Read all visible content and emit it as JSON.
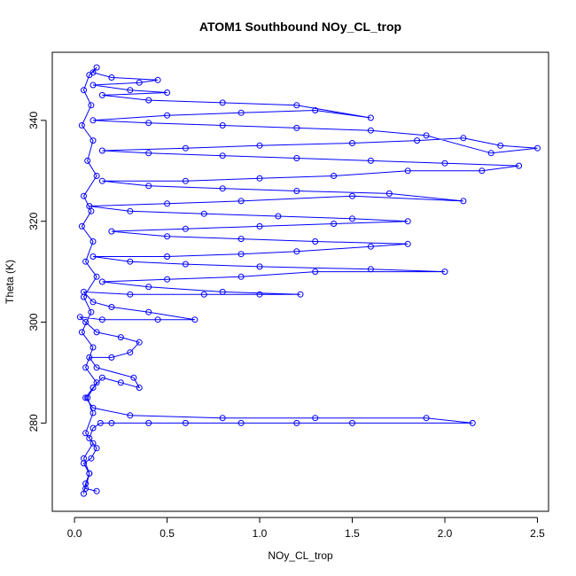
{
  "chart_data": {
    "type": "scatter",
    "title": "ATOM1 Southbound NOy_CL_trop",
    "xlabel": "NOy_CL_trop",
    "ylabel": "Theta (K)",
    "xlim": [
      -0.12,
      2.56
    ],
    "ylim": [
      262.5,
      353.5
    ],
    "x_ticks": [
      0.0,
      0.5,
      1.0,
      1.5,
      2.0,
      2.5
    ],
    "x_tick_labels": [
      "0.0",
      "0.5",
      "1.0",
      "1.5",
      "2.0",
      "2.5"
    ],
    "y_ticks": [
      280,
      300,
      320,
      340
    ],
    "y_tick_labels": [
      "280",
      "300",
      "320",
      "340"
    ],
    "grid": false,
    "legend": "none",
    "marker": "open-circle",
    "connected": true,
    "color": "#0000ff",
    "series": [
      {
        "points": [
          [
            0.05,
            266
          ],
          [
            0.06,
            268
          ],
          [
            0.08,
            270
          ],
          [
            0.05,
            272
          ],
          [
            0.09,
            273
          ],
          [
            0.12,
            275
          ],
          [
            0.08,
            277
          ],
          [
            0.1,
            279
          ],
          [
            0.14,
            280
          ],
          [
            0.2,
            280
          ],
          [
            0.4,
            280
          ],
          [
            0.6,
            280
          ],
          [
            0.9,
            280
          ],
          [
            1.2,
            280
          ],
          [
            1.5,
            280
          ],
          [
            2.15,
            280
          ],
          [
            1.9,
            281
          ],
          [
            1.3,
            281
          ],
          [
            0.8,
            281
          ],
          [
            0.3,
            281.5
          ],
          [
            0.1,
            283
          ],
          [
            0.06,
            285
          ],
          [
            0.1,
            287
          ],
          [
            0.15,
            289
          ],
          [
            0.25,
            288
          ],
          [
            0.35,
            287
          ],
          [
            0.32,
            289
          ],
          [
            0.12,
            291
          ],
          [
            0.08,
            293
          ],
          [
            0.2,
            293
          ],
          [
            0.3,
            294
          ],
          [
            0.35,
            296
          ],
          [
            0.25,
            297
          ],
          [
            0.12,
            298
          ],
          [
            0.06,
            300
          ],
          [
            0.03,
            301
          ],
          [
            0.15,
            300.5
          ],
          [
            0.45,
            300.5
          ],
          [
            0.65,
            300.5
          ],
          [
            0.4,
            302
          ],
          [
            0.2,
            303
          ],
          [
            0.1,
            304
          ],
          [
            0.05,
            306
          ],
          [
            0.3,
            305.5
          ],
          [
            0.7,
            305.5
          ],
          [
            1.0,
            305.5
          ],
          [
            1.22,
            305.5
          ],
          [
            0.8,
            306
          ],
          [
            0.4,
            307
          ],
          [
            0.15,
            308
          ],
          [
            0.5,
            308.5
          ],
          [
            0.9,
            309
          ],
          [
            1.3,
            310
          ],
          [
            2.0,
            310
          ],
          [
            1.6,
            310.5
          ],
          [
            1.0,
            311
          ],
          [
            0.6,
            311.5
          ],
          [
            0.3,
            312
          ],
          [
            0.1,
            313
          ],
          [
            0.5,
            313
          ],
          [
            0.9,
            313.5
          ],
          [
            1.2,
            314
          ],
          [
            1.6,
            315
          ],
          [
            1.8,
            315.5
          ],
          [
            1.3,
            316
          ],
          [
            0.9,
            316.5
          ],
          [
            0.5,
            317
          ],
          [
            0.2,
            318
          ],
          [
            0.6,
            318.5
          ],
          [
            1.0,
            319
          ],
          [
            1.4,
            319.5
          ],
          [
            1.8,
            320
          ],
          [
            1.5,
            320.5
          ],
          [
            1.1,
            321
          ],
          [
            0.7,
            321.5
          ],
          [
            0.3,
            322
          ],
          [
            0.08,
            323
          ],
          [
            0.5,
            323.5
          ],
          [
            0.9,
            324
          ],
          [
            1.5,
            325
          ],
          [
            2.1,
            324
          ],
          [
            1.7,
            325.5
          ],
          [
            1.2,
            326
          ],
          [
            0.8,
            326.5
          ],
          [
            0.4,
            327
          ],
          [
            0.15,
            328
          ],
          [
            0.6,
            328
          ],
          [
            1.0,
            328.5
          ],
          [
            1.4,
            329
          ],
          [
            1.8,
            330
          ],
          [
            2.2,
            330
          ],
          [
            2.4,
            331
          ],
          [
            2.0,
            331.5
          ],
          [
            1.6,
            332
          ],
          [
            1.2,
            332.5
          ],
          [
            0.8,
            333
          ],
          [
            0.4,
            333.5
          ],
          [
            0.15,
            334
          ],
          [
            0.6,
            334.5
          ],
          [
            1.0,
            335
          ],
          [
            1.5,
            335.5
          ],
          [
            1.85,
            336
          ],
          [
            2.1,
            336.5
          ],
          [
            2.3,
            335
          ],
          [
            2.5,
            334.5
          ],
          [
            2.25,
            333.5
          ],
          [
            1.9,
            337
          ],
          [
            1.6,
            338
          ],
          [
            1.2,
            338.5
          ],
          [
            0.8,
            339
          ],
          [
            0.4,
            339.5
          ],
          [
            0.1,
            340
          ],
          [
            0.5,
            341
          ],
          [
            0.9,
            341.5
          ],
          [
            1.3,
            342
          ],
          [
            1.6,
            340.5
          ],
          [
            1.2,
            343
          ],
          [
            0.8,
            343.5
          ],
          [
            0.4,
            344
          ],
          [
            0.15,
            345
          ],
          [
            0.5,
            345.5
          ],
          [
            0.3,
            346
          ],
          [
            0.1,
            347
          ],
          [
            0.35,
            347.5
          ],
          [
            0.45,
            348
          ],
          [
            0.2,
            348.5
          ],
          [
            0.1,
            349.5
          ],
          [
            0.12,
            350.5
          ],
          [
            0.08,
            349
          ],
          [
            0.05,
            346
          ],
          [
            0.09,
            343
          ],
          [
            0.04,
            339
          ],
          [
            0.1,
            336
          ],
          [
            0.07,
            332
          ],
          [
            0.12,
            329
          ],
          [
            0.05,
            325
          ],
          [
            0.09,
            322
          ],
          [
            0.04,
            319
          ],
          [
            0.1,
            316
          ],
          [
            0.06,
            312
          ],
          [
            0.12,
            309
          ],
          [
            0.05,
            305
          ],
          [
            0.09,
            302
          ],
          [
            0.04,
            298
          ],
          [
            0.1,
            295
          ],
          [
            0.06,
            291
          ],
          [
            0.12,
            288
          ],
          [
            0.07,
            285
          ],
          [
            0.1,
            282
          ],
          [
            0.06,
            278
          ],
          [
            0.1,
            276
          ],
          [
            0.05,
            273
          ],
          [
            0.08,
            270
          ],
          [
            0.06,
            267
          ],
          [
            0.12,
            266.5
          ]
        ]
      }
    ]
  }
}
